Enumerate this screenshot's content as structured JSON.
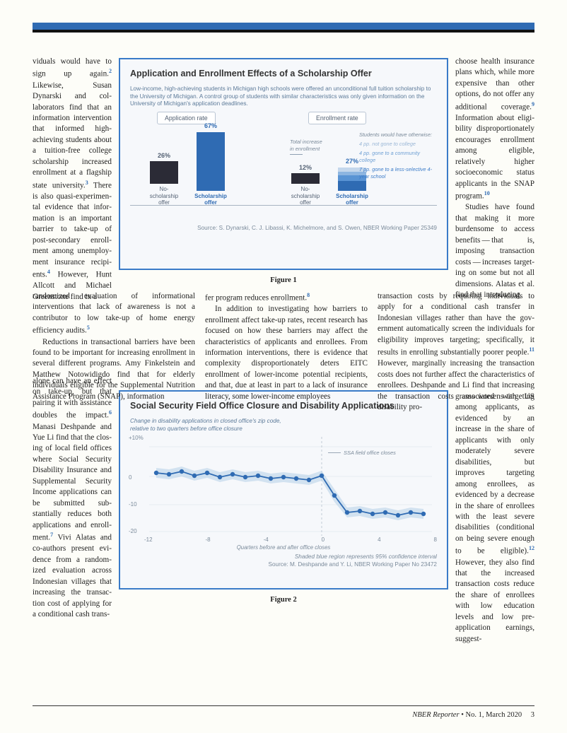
{
  "footer": {
    "journal": "NBER Reporter",
    "issue": "No. 1, March 2020",
    "page": "3"
  },
  "figure1": {
    "title": "Application and Enrollment Effects of a Scholarship Offer",
    "subtitle": "Low-income, high-achieving students in Michigan high schools were offered an unconditional full tuition scholarship to the University of Michigan. A control group of students with similar characteristics was only given information on the University of Michigan's application deadlines.",
    "type": "bar",
    "groups": [
      {
        "label": "Application rate",
        "bars": [
          {
            "label": "No-scholarship\noffer",
            "value": 26,
            "value_label": "26%",
            "color": "#2b2b36"
          },
          {
            "label": "Scholarship\noffer",
            "value": 67,
            "value_label": "67%",
            "color": "#2f6bb3"
          }
        ]
      },
      {
        "label": "Enrollment rate",
        "bars": [
          {
            "label": "No-scholarship\noffer",
            "value": 12,
            "value_label": "12%",
            "color": "#2b2b36"
          },
          {
            "label": "Scholarship\noffer",
            "value": 27,
            "value_label": "27%",
            "color_stack": [
              "#c4d7ec",
              "#8db5e0",
              "#5a94d4",
              "#2f6bb3"
            ]
          }
        ]
      }
    ],
    "annotation_total_1": "Total increase",
    "annotation_total_2": "in enrollment",
    "breakdown": {
      "header": "Students would have otherwise:",
      "items": [
        {
          "pp": "4 pp.",
          "text": "not gone to college",
          "color": "#99b6d6"
        },
        {
          "pp": "4 pp.",
          "text": "gone to a community college",
          "color": "#6fa0d4"
        },
        {
          "pp": "7 pp.",
          "text": "gone to a less-selective 4-year school",
          "color": "#3a7bc8"
        }
      ]
    },
    "background_color": "#f6f8fb",
    "border_color": "#3a7bc8",
    "axis_color": "#a8b4c2",
    "source": "Source: S. Dynarski, C. J. Libassi, K. Michelmore, and S. Owen, NBER Working Paper 25349",
    "caption": "Figure 1"
  },
  "figure2": {
    "title": "Social Security Field Office Closure and Disability Applications",
    "subtitle_l1": "Change in disability applications in closed office's zip code,",
    "subtitle_l2": "relative to two quarters before office closure",
    "type": "line",
    "ylabels": [
      "+10%",
      "0",
      "-10",
      "-20"
    ],
    "ylim": [
      -20,
      10
    ],
    "xlabels": [
      "-12",
      "-8",
      "-4",
      "0",
      "4",
      "8"
    ],
    "xaxis_title": "Quarters before and after office closes",
    "annotation": "SSA field office closes",
    "line_color": "#2f6bb3",
    "band_color": "#b4cfe8",
    "grid_color": "#d6dee6",
    "marker": {
      "shape": "circle",
      "size": 3.2,
      "color": "#2f6bb3"
    },
    "series_y": [
      1,
      0.5,
      1.5,
      0,
      1,
      -0.5,
      0.5,
      -0.5,
      0,
      -1,
      -0.5,
      -1,
      -1.5,
      0,
      -7,
      -13,
      -12.5,
      -13.5,
      -13,
      -14,
      -13,
      -13.5
    ],
    "series_x": [
      -13,
      -12,
      -11,
      -10,
      -9,
      -8,
      -7,
      -6,
      -5,
      -4,
      -3,
      -2,
      -1,
      0,
      1,
      2,
      3,
      4,
      5,
      6,
      7,
      8
    ],
    "shaded_note": "Shaded blue region represents 95% confidence interval",
    "source": "Source: M. Deshpande and Y. Li, NBER Working Paper No 23472",
    "caption": "Figure 2",
    "background_color": "#f6f8fb",
    "border_color": "#3a7bc8"
  },
  "segments": {
    "seg1": "viduals would have to sign up again.{2} Likewise, Susan Dynarski and col­laborators find that an information interven­tion that informed high-achieving students about a tuition-free college scholarship increased enrollment at a flagship state university.{3} There is also quasi-experimen­tal evidence that infor­mation is an important barrier to take-up of post-secondary enroll­ment among unemploy­ment insurance recipi­ents.{4} However, Hunt Allcott and Michael Greenstone find in a",
    "seg2": "randomized evaluation of informational interventions that lack of awareness is not a contributor to low take-up of home energy efficiency audits.{5}|||{P}Reductions in transactional barri­ers have been found to be important for increasing enrollment in several different programs. Amy Finkelstein and Matthew Notowidigdo find that for elderly individu­als eligible for the Supplemental Nutrition Assistance Program (SNAP), information",
    "seg3": "alone can have an effect on take-up, but that pairing it with assistance doubles the impact.{6} Manasi Deshpande and Yue Li find that the clos­ing of local field offices where Social Security Disability Insurance and Supplemental Security Income applications can be submitted sub­stantially reduces both applications and enroll­ment.{7} Vivi Alatas and co-authors present evi­dence from a random­ized evaluation across Indonesian villages that increasing the transac­tion cost of applying for a conditional cash trans-",
    "seg4": "fer program reduces enrollment.{8}|||{P}In addition to investigating how barri­ers to enrollment affect take-up rates, recent research has focused on how these barri­ers may affect the characteristics of appli­cants and enrollees. From information inter­ventions, there is evidence that complexity disproportionately deters EITC enrollment of lower-income potential recipients, and that, due at least in part to a lack of insur­ance literacy, some lower-income employees",
    "seg5": "choose health insurance plans which, while more expensive than other options, do not offer any additional coverage.{9} Information about eligi­bility disproportionately encourages enrollment among eligible, relatively higher socioeconomic status applicants in the SNAP program.{10}|||{P}Studies have found that making it more burdensome to access benefits — that is, imposing transaction costs — increases target­ing on some but not all dimensions. Alatas et al. find that introducing",
    "seg6": "transaction costs by requiring individuals to apply for a conditional cash transfer in Indonesian villages rather than have the gov­ernment automatically screen the individuals for eligibility improves targeting; specifically, it results in enrolling substantially poorer people.{11} However, marginally increasing the transaction costs does not further affect the characteristics of enrollees. Deshpande and Li find that increasing the transaction costs associated with US disability pro-",
    "seg7": "grams worsens target­ing among applicants, as evidenced by an increase in the share of appli­cants with only moder­ately severe disabilities, but improves target­ing among enrollees, as evidenced by a decrease in the share of enrollees with the least severe disabilities (conditional on being severe enough to be eligible).{12} However, they also find that the increased transac­tion costs reduce the share of enrollees with low education levels and low pre-applica­tion earnings, suggest-"
  }
}
